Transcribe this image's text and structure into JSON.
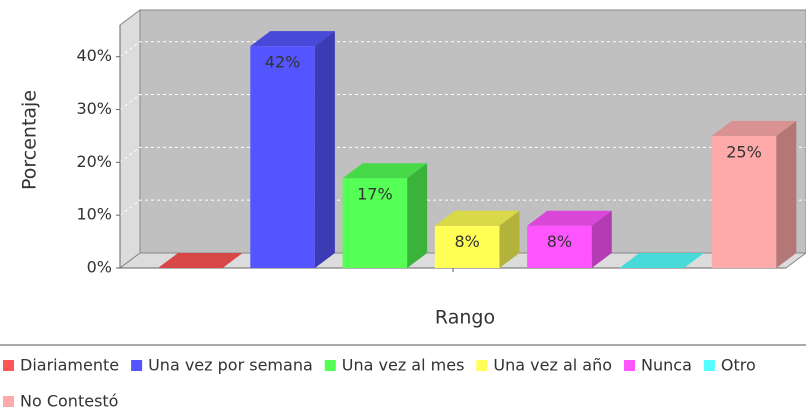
{
  "chart_data": {
    "type": "bar3d",
    "x_label": "Rango",
    "y_label": "Porcentaje",
    "categories": [
      null
    ],
    "series": [
      {
        "name": "Diariamente",
        "color": "#ff5555",
        "values": [
          0
        ]
      },
      {
        "name": "Una vez por semana",
        "color": "#5555ff",
        "values": [
          42
        ],
        "value_labels": [
          "42%"
        ]
      },
      {
        "name": "Una vez al mes",
        "color": "#55ff55",
        "values": [
          17
        ],
        "value_labels": [
          "17%"
        ]
      },
      {
        "name": "Una vez al año",
        "color": "#ffff55",
        "values": [
          8
        ],
        "value_labels": [
          "8%"
        ]
      },
      {
        "name": "Nunca",
        "color": "#ff55ff",
        "values": [
          8
        ],
        "value_labels": [
          "8%"
        ]
      },
      {
        "name": "Otro",
        "color": "#55ffff",
        "values": [
          0
        ]
      },
      {
        "name": "No Contestó",
        "color": "#ffaaaa",
        "values": [
          25
        ],
        "value_labels": [
          "25%"
        ]
      }
    ],
    "ylim": [
      0,
      46
    ],
    "yticks": [
      {
        "value": 0,
        "label": "0%"
      },
      {
        "value": 10,
        "label": "10%"
      },
      {
        "value": 20,
        "label": "20%"
      },
      {
        "value": 30,
        "label": "30%"
      },
      {
        "value": 40,
        "label": "40%"
      }
    ],
    "grid": true,
    "legend": "bottom"
  }
}
